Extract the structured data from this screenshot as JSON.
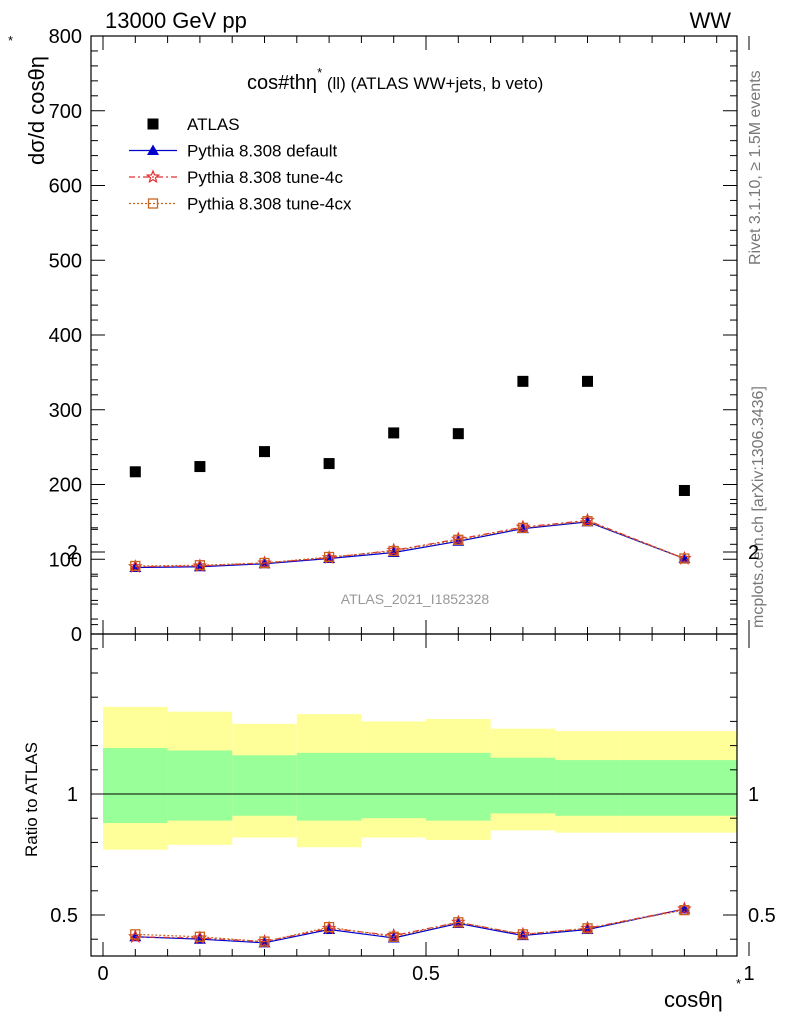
{
  "header": {
    "left": "13000 GeV pp",
    "right": "WW"
  },
  "side_labels": {
    "rivet": "Rivet 3.1.10, ≥ 1.5M events",
    "mcplots": "mcplots.cern.ch [arXiv:1306.3436]"
  },
  "watermark": "ATLAS_2021_I1852328",
  "colors": {
    "atlas": "#000000",
    "default": "#0000cc",
    "tune4c": "#e03030",
    "tune4cx": "#c86420",
    "band_inner": "#99ff99",
    "band_outer": "#ffff99"
  },
  "chart_data": [
    {
      "type": "scatter",
      "panel": "main",
      "title": "cos#thη* (ll) (ATLAS WW+jets, b veto)",
      "title_main": "cos#thη",
      "title_sup": "*",
      "title_rest": " (ll) (ATLAS WW+jets, b veto)",
      "ylabel": "dσ/d cosθη",
      "ylabel_sup": "*",
      "xlim": [
        0,
        1
      ],
      "ylim": [
        0,
        800
      ],
      "yticks": [
        0,
        100,
        200,
        300,
        400,
        500,
        600,
        700,
        800
      ],
      "ytick_labels": [
        "0",
        "100",
        "200",
        "300",
        "400",
        "500",
        "600",
        "700",
        "800"
      ],
      "bin_edges": [
        0,
        0.1,
        0.2,
        0.3,
        0.4,
        0.5,
        0.6,
        0.7,
        0.8,
        1.0
      ],
      "x": [
        0.05,
        0.15,
        0.25,
        0.35,
        0.45,
        0.55,
        0.65,
        0.75,
        0.9
      ],
      "legend_position": "top-left",
      "series": [
        {
          "name": "ATLAS",
          "key": "atlas",
          "marker": "square",
          "values": [
            217,
            224,
            244,
            228,
            269,
            268,
            338,
            338,
            192
          ]
        },
        {
          "name": "Pythia 8.308 default",
          "key": "default",
          "marker": "triangle",
          "values": [
            89,
            90,
            94,
            101,
            109,
            124,
            141,
            150,
            101
          ]
        },
        {
          "name": "Pythia 8.308 tune-4c",
          "key": "tune4c",
          "marker": "star",
          "values": [
            90,
            91,
            95,
            102,
            112,
            127,
            143,
            152,
            101
          ]
        },
        {
          "name": "Pythia 8.308 tune-4cx",
          "key": "tune4cx",
          "marker": "open-square",
          "values": [
            91,
            92,
            95,
            103,
            111,
            126,
            142,
            151,
            101
          ]
        }
      ]
    },
    {
      "type": "line",
      "panel": "ratio",
      "ylabel": "Ratio to ATLAS",
      "xlabel": "cosθη",
      "xlabel_sup": "*",
      "xlim": [
        0,
        1
      ],
      "ylim": [
        0.35,
        2.3
      ],
      "xticks": [
        0,
        0.5,
        1
      ],
      "xtick_labels": [
        "0",
        "0.5",
        "1"
      ],
      "yticks": [
        0.5,
        1,
        2
      ],
      "ytick_labels": [
        "0.5",
        "1",
        "2"
      ],
      "band_inner": [
        [
          0.88,
          1.19
        ],
        [
          0.89,
          1.18
        ],
        [
          0.91,
          1.16
        ],
        [
          0.89,
          1.17
        ],
        [
          0.9,
          1.17
        ],
        [
          0.89,
          1.17
        ],
        [
          0.92,
          1.15
        ],
        [
          0.91,
          1.14
        ],
        [
          0.91,
          1.14
        ]
      ],
      "band_outer": [
        [
          0.77,
          1.36
        ],
        [
          0.79,
          1.34
        ],
        [
          0.82,
          1.29
        ],
        [
          0.78,
          1.33
        ],
        [
          0.82,
          1.3
        ],
        [
          0.81,
          1.31
        ],
        [
          0.85,
          1.27
        ],
        [
          0.84,
          1.26
        ],
        [
          0.84,
          1.26
        ]
      ],
      "series": [
        {
          "name": "Pythia 8.308 default",
          "key": "default",
          "marker": "triangle",
          "values": [
            0.41,
            0.4,
            0.385,
            0.44,
            0.405,
            0.465,
            0.415,
            0.44,
            0.525
          ]
        },
        {
          "name": "Pythia 8.308 tune-4c",
          "key": "tune4c",
          "marker": "star",
          "values": [
            0.41,
            0.405,
            0.39,
            0.445,
            0.415,
            0.47,
            0.42,
            0.445,
            0.525
          ]
        },
        {
          "name": "Pythia 8.308 tune-4cx",
          "key": "tune4cx",
          "marker": "open-square",
          "values": [
            0.42,
            0.41,
            0.39,
            0.45,
            0.41,
            0.47,
            0.42,
            0.445,
            0.52
          ]
        }
      ]
    }
  ]
}
